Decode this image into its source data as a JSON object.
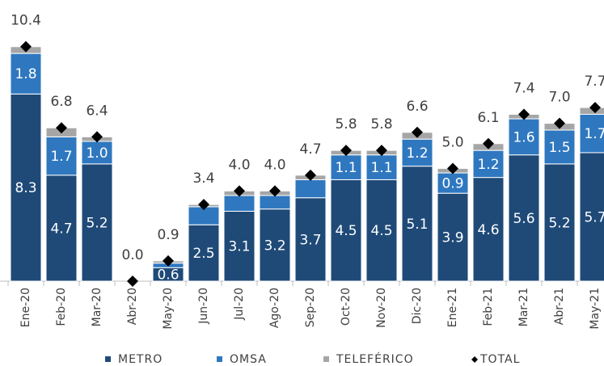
{
  "chart_data": {
    "type": "stacked-bar",
    "categories": [
      "Ene-20",
      "Feb-20",
      "Mar-20",
      "Abr-20",
      "May-20",
      "Jun-20",
      "Jul-20",
      "Ago-20",
      "Sep-20",
      "Oct-20",
      "Nov-20",
      "Dic-20",
      "Ene-21",
      "Feb-21",
      "Mar-21",
      "Abr-21",
      "May-21"
    ],
    "ylim": [
      0,
      11
    ],
    "series": [
      {
        "name": "METRO",
        "color": "#1f4a78",
        "values": [
          8.3,
          4.7,
          5.2,
          0,
          0.6,
          2.5,
          3.1,
          3.2,
          3.7,
          4.5,
          4.5,
          5.1,
          3.9,
          4.6,
          5.6,
          5.2,
          5.7
        ],
        "value_labels": [
          "8.3",
          "4.7",
          "5.2",
          null,
          "0.6",
          "2.5",
          "3.1",
          "3.2",
          "3.7",
          "4.5",
          "4.5",
          "5.1",
          "3.9",
          "4.6",
          "5.6",
          "5.2",
          "5.7"
        ]
      },
      {
        "name": "OMSA",
        "color": "#2f78c0",
        "values": [
          1.8,
          1.7,
          1.0,
          0,
          0.2,
          0.8,
          0.7,
          0.6,
          0.8,
          1.1,
          1.1,
          1.2,
          0.9,
          1.2,
          1.6,
          1.5,
          1.7
        ],
        "value_labels": [
          "1.8",
          "1.7",
          "1.0",
          null,
          null,
          null,
          null,
          null,
          null,
          "1.1",
          "1.1",
          "1.2",
          "0.9",
          "1.2",
          "1.6",
          "1.5",
          "1.7"
        ]
      },
      {
        "name": "TELEFÉRICO",
        "color": "#a6a6a6",
        "values": [
          0.3,
          0.4,
          0.2,
          0,
          0.1,
          0.1,
          0.2,
          0.2,
          0.2,
          0.2,
          0.2,
          0.3,
          0.2,
          0.3,
          0.2,
          0.3,
          0.3
        ]
      }
    ],
    "total": {
      "name": "TOTAL",
      "color": "#000000",
      "values": [
        10.4,
        6.8,
        6.4,
        0,
        0.9,
        3.4,
        4.0,
        4.0,
        4.7,
        5.8,
        5.8,
        6.6,
        5.0,
        6.1,
        7.4,
        7.0,
        7.7
      ],
      "value_labels": [
        "10.4",
        "6.8",
        "6.4",
        "0.0",
        "0.9",
        "3.4",
        "4.0",
        "4.0",
        "4.7",
        "5.8",
        "5.8",
        "6.6",
        "5.0",
        "6.1",
        "7.4",
        "7.0",
        "7.7"
      ]
    }
  }
}
